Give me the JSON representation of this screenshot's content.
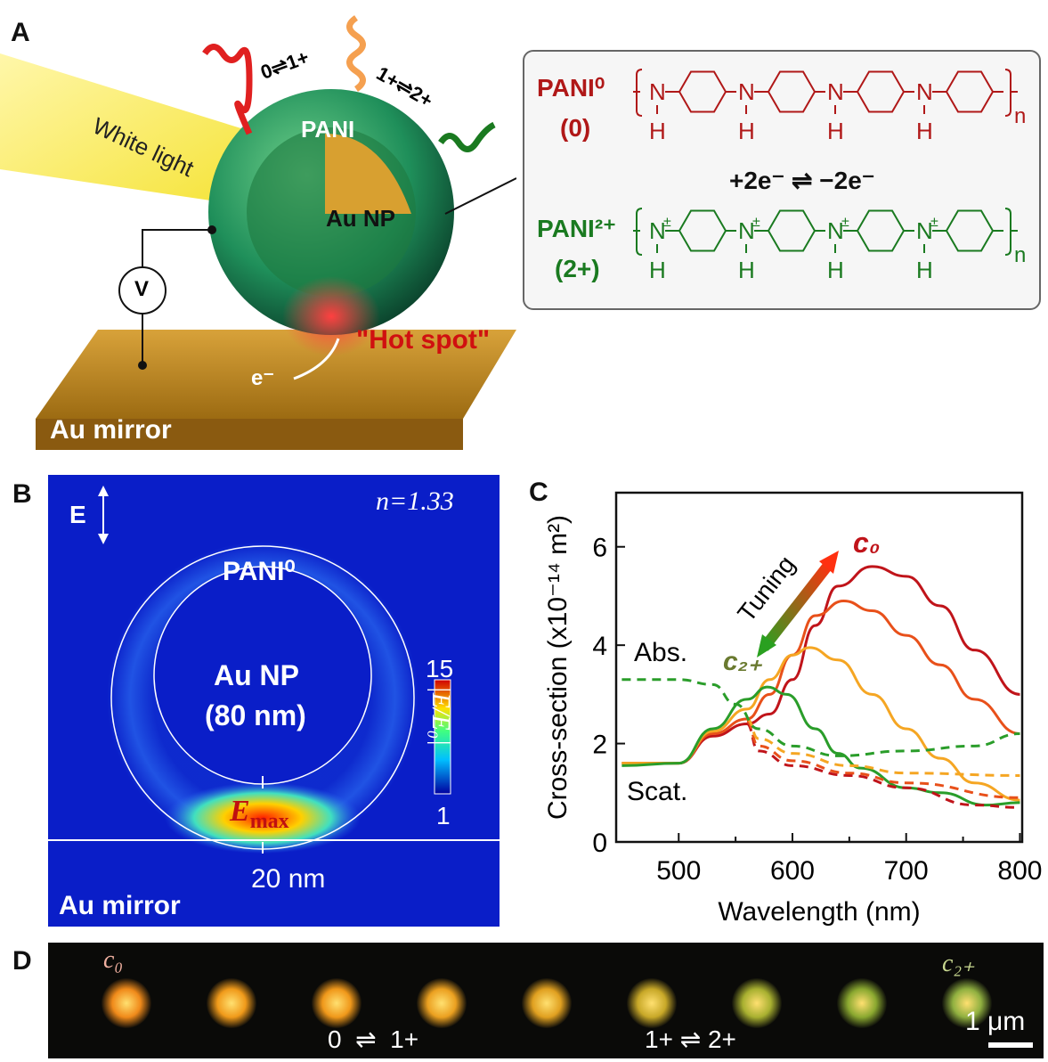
{
  "panels": {
    "a": {
      "label": "A",
      "white_light": "White light",
      "transition_01": "0⇌1+",
      "transition_12": "1+⇌2+",
      "shell": "PANI",
      "core": "Au NP",
      "voltmeter": "V",
      "hot_spot": "\"Hot spot\"",
      "electron": "e⁻",
      "mirror": "Au mirror",
      "box": {
        "pani0_name": "PANI⁰",
        "pani0_state": "(0)",
        "reaction": "+2e⁻ ⇌ −2e⁻",
        "pani2_name": "PANI²⁺",
        "pani2_state": "(2+)",
        "atom_n": "N",
        "atom_h": "H",
        "repeat": "n",
        "charge": "±"
      }
    },
    "b": {
      "label": "B",
      "field": "E",
      "index": "n=1.33",
      "shell": "PANI⁰",
      "core": "Au NP",
      "size": "(80 nm)",
      "cbar_max": "15",
      "cbar_min": "1",
      "cbar_label": "|E/E₀|",
      "emax": "E",
      "emax_sub": "max",
      "gap": "20 nm",
      "mirror": "Au mirror"
    },
    "c": {
      "label": "C"
    },
    "d": {
      "label": "D",
      "start": "c₀",
      "end": "c₂₊",
      "step1": "0  ⇌  1+",
      "step2": "1+ ⇌ 2+",
      "scale": "1 μm",
      "spot_colors": [
        "#f08a1a",
        "#f09a1a",
        "#f0981a",
        "#eba020",
        "#e0a020",
        "#c8a828",
        "#a8b030",
        "#8aa830",
        "#90b040"
      ]
    }
  },
  "chart_data": {
    "type": "line",
    "xlabel": "Wavelength (nm)",
    "ylabel": "Cross-section (x10⁻¹⁴ m²)",
    "xlim": [
      445,
      802
    ],
    "ylim": [
      0,
      7.1
    ],
    "xticks": [
      500,
      600,
      700,
      800
    ],
    "yticks": [
      0,
      2,
      4,
      6
    ],
    "annotations": {
      "tuning": "Tuning",
      "c0": "c₀",
      "c2": "c₂₊",
      "abs": "Abs.",
      "scat": "Scat."
    },
    "series": [
      {
        "name": "c0 scattering",
        "color": "#c0141a",
        "dash": false,
        "x": [
          450,
          500,
          530,
          560,
          580,
          600,
          620,
          640,
          670,
          700,
          730,
          760,
          800
        ],
        "y": [
          1.6,
          1.6,
          2.15,
          2.4,
          2.6,
          3.3,
          4.4,
          5.2,
          5.6,
          5.4,
          4.8,
          3.9,
          3.0
        ]
      },
      {
        "name": "1+ scattering",
        "color": "#e8501a",
        "dash": false,
        "x": [
          450,
          500,
          530,
          560,
          580,
          600,
          620,
          645,
          670,
          700,
          730,
          760,
          800
        ],
        "y": [
          1.6,
          1.6,
          2.2,
          2.5,
          3.0,
          3.8,
          4.6,
          4.9,
          4.7,
          4.2,
          3.6,
          2.9,
          2.2
        ]
      },
      {
        "name": "intermediate scattering",
        "color": "#f5a623",
        "dash": false,
        "x": [
          450,
          500,
          530,
          560,
          580,
          600,
          615,
          640,
          670,
          700,
          730,
          760,
          800
        ],
        "y": [
          1.6,
          1.6,
          2.25,
          2.7,
          3.3,
          3.8,
          3.95,
          3.7,
          3.0,
          2.3,
          1.7,
          1.2,
          0.85
        ]
      },
      {
        "name": "c2+ scattering",
        "color": "#2a9d2a",
        "dash": false,
        "x": [
          450,
          500,
          530,
          560,
          578,
          595,
          620,
          640,
          660,
          700,
          730,
          770,
          800
        ],
        "y": [
          1.55,
          1.6,
          2.3,
          2.9,
          3.15,
          3.0,
          2.3,
          1.8,
          1.5,
          1.1,
          1.0,
          0.75,
          0.8
        ]
      },
      {
        "name": "c0 absorption",
        "color": "#c0141a",
        "dash": true,
        "x": [
          560,
          570,
          600,
          650,
          700,
          760,
          800
        ],
        "y": [
          2.4,
          1.85,
          1.55,
          1.35,
          1.1,
          0.75,
          0.7
        ]
      },
      {
        "name": "1+ absorption",
        "color": "#e8501a",
        "dash": true,
        "x": [
          560,
          570,
          600,
          650,
          700,
          800
        ],
        "y": [
          2.45,
          1.95,
          1.65,
          1.4,
          1.2,
          0.9
        ]
      },
      {
        "name": "intermediate absorption",
        "color": "#f5a623",
        "dash": true,
        "x": [
          560,
          570,
          600,
          650,
          700,
          800
        ],
        "y": [
          2.5,
          2.1,
          1.8,
          1.55,
          1.4,
          1.35
        ]
      },
      {
        "name": "c2+ absorption",
        "color": "#2a9d2a",
        "dash": true,
        "x": [
          450,
          500,
          530,
          550,
          570,
          600,
          640,
          700,
          760,
          800
        ],
        "y": [
          3.3,
          3.3,
          3.2,
          2.8,
          2.3,
          1.95,
          1.75,
          1.85,
          1.95,
          2.2
        ]
      }
    ]
  }
}
